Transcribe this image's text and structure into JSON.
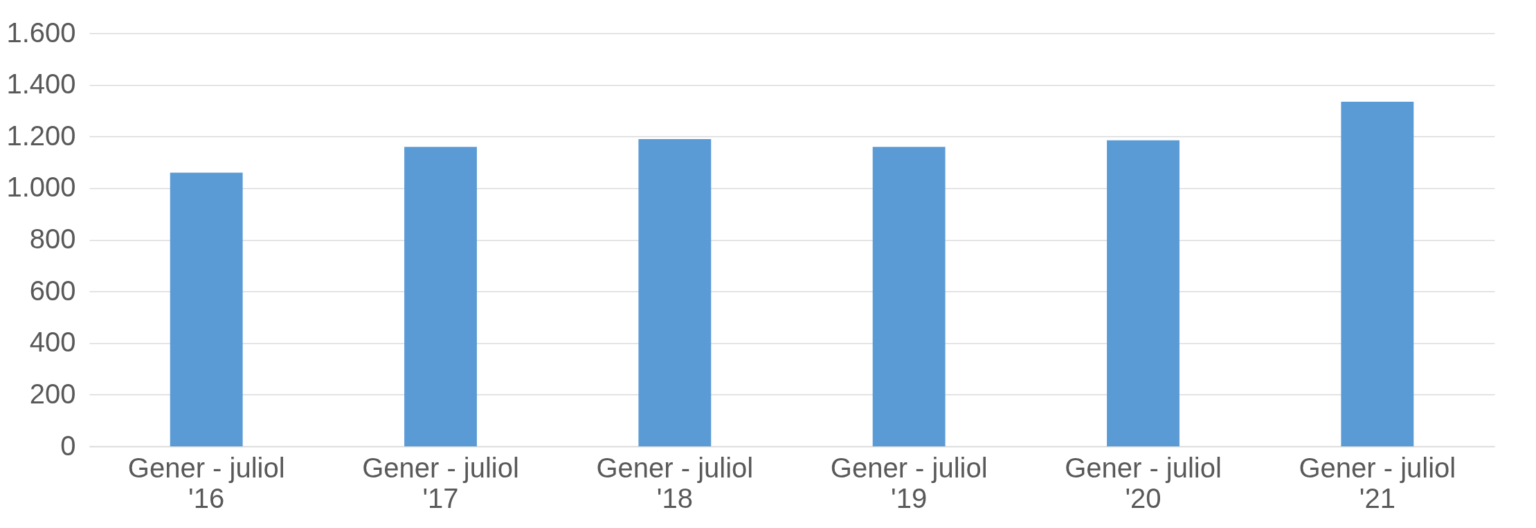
{
  "chart_data": {
    "type": "bar",
    "categories": [
      "Gener - juliol '16",
      "Gener - juliol '17",
      "Gener - juliol '18",
      "Gener - juliol '19",
      "Gener - juliol '20",
      "Gener - juliol '21"
    ],
    "values": [
      1060,
      1160,
      1190,
      1160,
      1185,
      1335
    ],
    "color": "#5b9bd5",
    "ylim": [
      0,
      1600
    ],
    "yticks": [
      0,
      200,
      400,
      600,
      800,
      {
        "value": 1000,
        "label": "1.000"
      },
      {
        "value": 1200,
        "label": "1.200"
      },
      {
        "value": 1400,
        "label": "1.400"
      },
      {
        "value": 1600,
        "label": "1.600"
      }
    ],
    "grid": "y"
  }
}
